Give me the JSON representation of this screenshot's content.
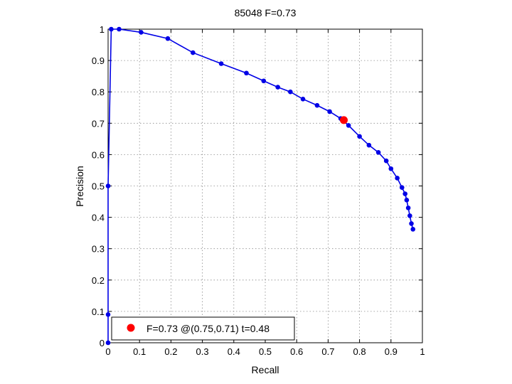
{
  "chart_data": {
    "type": "line",
    "title": "85048 F=0.73",
    "xlabel": "Recall",
    "ylabel": "Precision",
    "xlim": [
      0,
      1
    ],
    "ylim": [
      0,
      1
    ],
    "grid": true,
    "x_ticks": [
      "0",
      "0.1",
      "0.2",
      "0.3",
      "0.4",
      "0.5",
      "0.6",
      "0.7",
      "0.8",
      "0.9",
      "1"
    ],
    "y_ticks": [
      "0",
      "0.1",
      "0.2",
      "0.3",
      "0.4",
      "0.5",
      "0.6",
      "0.7",
      "0.8",
      "0.9",
      "1"
    ],
    "series": [
      {
        "color": "#0000e6",
        "x": [
          0.0,
          0.0,
          0.0,
          0.01,
          0.035,
          0.105,
          0.19,
          0.27,
          0.36,
          0.44,
          0.495,
          0.54,
          0.58,
          0.62,
          0.665,
          0.705,
          0.74,
          0.765,
          0.8,
          0.83,
          0.86,
          0.885,
          0.9,
          0.92,
          0.935,
          0.945,
          0.95,
          0.955,
          0.96,
          0.965,
          0.97
        ],
        "y": [
          0.0,
          0.09,
          0.5,
          1.0,
          1.0,
          0.99,
          0.97,
          0.925,
          0.89,
          0.86,
          0.835,
          0.815,
          0.8,
          0.777,
          0.757,
          0.737,
          0.715,
          0.693,
          0.658,
          0.63,
          0.607,
          0.58,
          0.555,
          0.525,
          0.495,
          0.475,
          0.455,
          0.43,
          0.405,
          0.38,
          0.362
        ]
      }
    ],
    "highlight": {
      "x": 0.75,
      "y": 0.71,
      "color": "#ff0000",
      "label": "F=0.73 @(0.75,0.71) t=0.48"
    },
    "legend_position": "bottom-left"
  }
}
